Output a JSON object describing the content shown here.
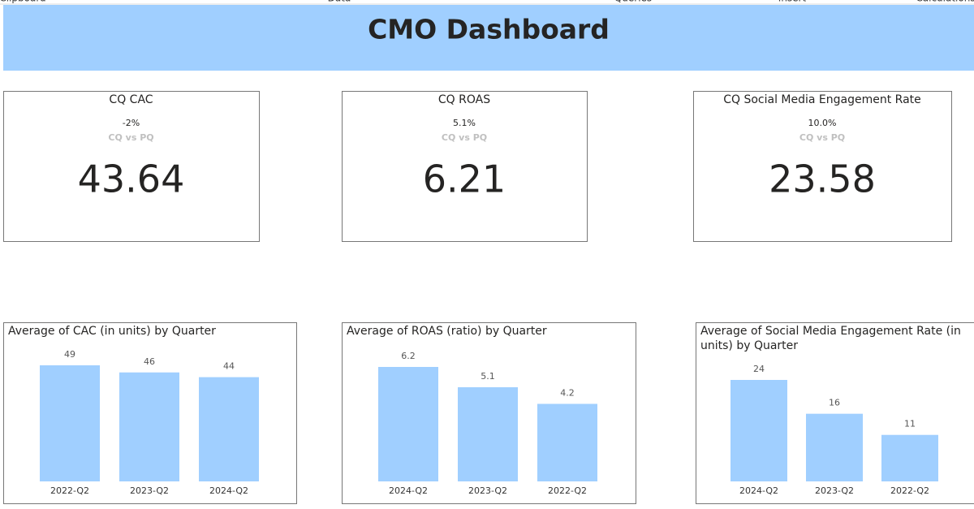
{
  "ribbon": {
    "tabs": [
      "Clipboard",
      "Data",
      "Queries",
      "Insert",
      "Calculations"
    ]
  },
  "header": {
    "title": "CMO Dashboard"
  },
  "cards": [
    {
      "title": "CQ CAC",
      "change": "-2%",
      "subtitle": "CQ vs PQ",
      "value": "43.64"
    },
    {
      "title": "CQ ROAS",
      "change": "5.1%",
      "subtitle": "CQ vs PQ",
      "value": "6.21"
    },
    {
      "title": "CQ Social Media Engagement Rate",
      "change": "10.0%",
      "subtitle": "CQ vs PQ",
      "value": "23.58"
    }
  ],
  "chart_data": [
    {
      "type": "bar",
      "title": "Average of CAC (in units) by Quarter",
      "categories": [
        "2022-Q2",
        "2023-Q2",
        "2024-Q2"
      ],
      "values": [
        49,
        46,
        44
      ],
      "color": "#a0cfff"
    },
    {
      "type": "bar",
      "title": "Average of ROAS (ratio) by Quarter",
      "categories": [
        "2024-Q2",
        "2023-Q2",
        "2022-Q2"
      ],
      "values": [
        6.2,
        5.1,
        4.2
      ],
      "color": "#a0cfff"
    },
    {
      "type": "bar",
      "title": "Average of Social Media Engagement Rate (in units) by Quarter",
      "categories": [
        "2024-Q2",
        "2023-Q2",
        "2022-Q2"
      ],
      "values": [
        24,
        16,
        11
      ],
      "color": "#a0cfff"
    }
  ]
}
